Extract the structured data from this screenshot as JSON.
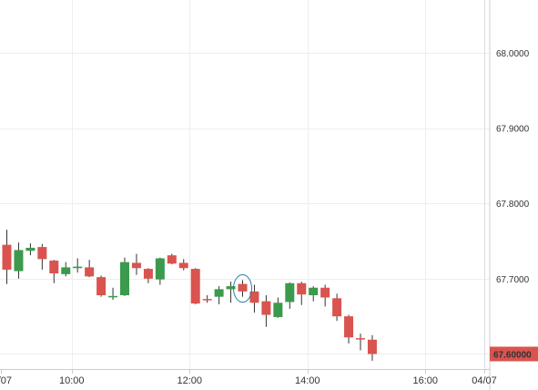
{
  "chart_data": {
    "type": "candlestick",
    "ylim": [
      67.58,
      68.07
    ],
    "y_ticks": [
      "68.0000",
      "67.9000",
      "67.8000",
      "67.7000"
    ],
    "y_tick_values": [
      68.0,
      67.9,
      67.8,
      67.7
    ],
    "x_ticks": [
      "/07",
      "10:00",
      "12:00",
      "14:00",
      "16:00",
      "04/07"
    ],
    "x_tick_index": [
      -0.5,
      5.5,
      15.5,
      25.5,
      35.5,
      40.5
    ],
    "last_price": "67.60000",
    "last_price_value": 67.6,
    "grid": true,
    "highlight_index": 20,
    "colors": {
      "up": "#3b9a4c",
      "down": "#d9534f",
      "wick": "#333333",
      "grid": "#eeeeee",
      "axis": "#cccccc",
      "highlight": "#2a7fa0",
      "price_tag": "#d9534f"
    },
    "candles": [
      {
        "o": 67.745,
        "h": 67.765,
        "l": 67.693,
        "c": 67.712
      },
      {
        "o": 67.71,
        "h": 67.748,
        "l": 67.7,
        "c": 67.738
      },
      {
        "o": 67.737,
        "h": 67.747,
        "l": 67.731,
        "c": 67.741
      },
      {
        "o": 67.742,
        "h": 67.746,
        "l": 67.712,
        "c": 67.726
      },
      {
        "o": 67.724,
        "h": 67.725,
        "l": 67.694,
        "c": 67.707
      },
      {
        "o": 67.706,
        "h": 67.722,
        "l": 67.703,
        "c": 67.715
      },
      {
        "o": 67.714,
        "h": 67.727,
        "l": 67.708,
        "c": 67.716
      },
      {
        "o": 67.715,
        "h": 67.725,
        "l": 67.702,
        "c": 67.703
      },
      {
        "o": 67.702,
        "h": 67.704,
        "l": 67.676,
        "c": 67.678
      },
      {
        "o": 67.676,
        "h": 67.688,
        "l": 67.672,
        "c": 67.677
      },
      {
        "o": 67.678,
        "h": 67.728,
        "l": 67.677,
        "c": 67.722
      },
      {
        "o": 67.721,
        "h": 67.733,
        "l": 67.705,
        "c": 67.714
      },
      {
        "o": 67.713,
        "h": 67.714,
        "l": 67.694,
        "c": 67.7
      },
      {
        "o": 67.699,
        "h": 67.728,
        "l": 67.692,
        "c": 67.727
      },
      {
        "o": 67.731,
        "h": 67.733,
        "l": 67.719,
        "c": 67.72
      },
      {
        "o": 67.721,
        "h": 67.726,
        "l": 67.711,
        "c": 67.714
      },
      {
        "o": 67.713,
        "h": 67.714,
        "l": 67.666,
        "c": 67.667
      },
      {
        "o": 67.673,
        "h": 67.678,
        "l": 67.668,
        "c": 67.672
      },
      {
        "o": 67.676,
        "h": 67.69,
        "l": 67.666,
        "c": 67.686
      },
      {
        "o": 67.686,
        "h": 67.696,
        "l": 67.668,
        "c": 67.69
      },
      {
        "o": 67.693,
        "h": 67.698,
        "l": 67.676,
        "c": 67.683
      },
      {
        "o": 67.683,
        "h": 67.692,
        "l": 67.655,
        "c": 67.668
      },
      {
        "o": 67.67,
        "h": 67.678,
        "l": 67.636,
        "c": 67.652
      },
      {
        "o": 67.649,
        "h": 67.675,
        "l": 67.648,
        "c": 67.668
      },
      {
        "o": 67.669,
        "h": 67.695,
        "l": 67.66,
        "c": 67.694
      },
      {
        "o": 67.694,
        "h": 67.696,
        "l": 67.665,
        "c": 67.679
      },
      {
        "o": 67.678,
        "h": 67.69,
        "l": 67.67,
        "c": 67.688
      },
      {
        "o": 67.688,
        "h": 67.692,
        "l": 67.663,
        "c": 67.675
      },
      {
        "o": 67.674,
        "h": 67.68,
        "l": 67.644,
        "c": 67.65
      },
      {
        "o": 67.65,
        "h": 67.652,
        "l": 67.614,
        "c": 67.622
      },
      {
        "o": 67.621,
        "h": 67.627,
        "l": 67.605,
        "c": 67.62
      },
      {
        "o": 67.619,
        "h": 67.625,
        "l": 67.591,
        "c": 67.6
      }
    ]
  }
}
